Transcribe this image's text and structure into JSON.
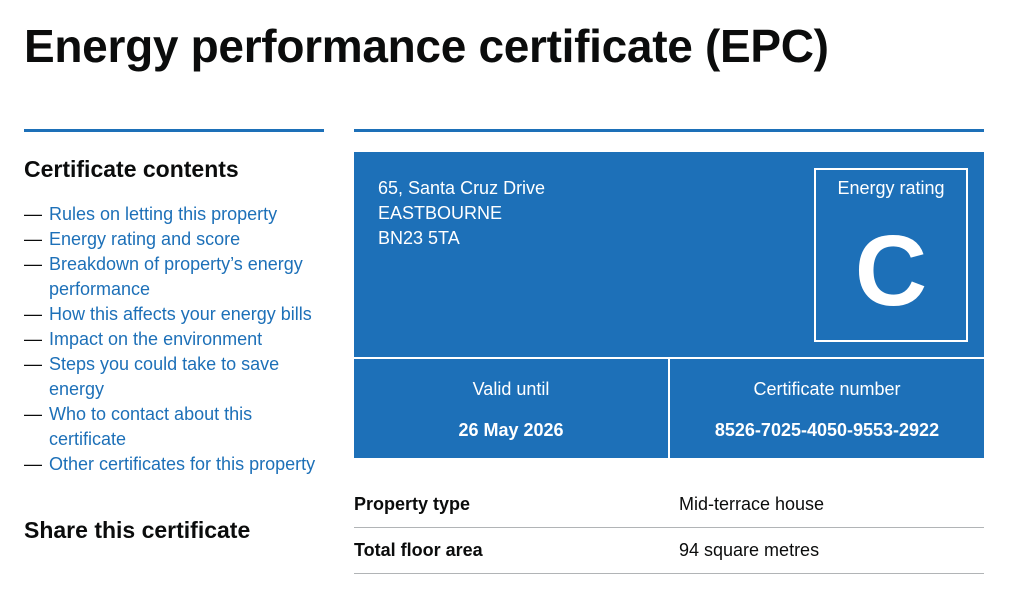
{
  "page": {
    "title": "Energy performance certificate (EPC)"
  },
  "sidebar": {
    "contents_heading": "Certificate contents",
    "items": [
      {
        "label": "Rules on letting this property"
      },
      {
        "label": "Energy rating and score"
      },
      {
        "label": "Breakdown of property’s energy performance"
      },
      {
        "label": "How this affects your energy bills"
      },
      {
        "label": "Impact on the environment"
      },
      {
        "label": "Steps you could take to save energy"
      },
      {
        "label": "Who to contact about this certificate"
      },
      {
        "label": "Other certificates for this property"
      }
    ],
    "dash": "—",
    "share_heading": "Share this certificate"
  },
  "certificate": {
    "address_line1": "65, Santa Cruz Drive",
    "address_line2": "EASTBOURNE",
    "address_line3": "BN23 5TA",
    "rating_label": "Energy rating",
    "rating_letter": "C",
    "valid_until_label": "Valid until",
    "valid_until_value": "26 May 2026",
    "certificate_number_label": "Certificate number",
    "certificate_number_value": "8526-7025-4050-9553-2922"
  },
  "summary": {
    "rows": [
      {
        "key": "Property type",
        "value": "Mid-terrace house"
      },
      {
        "key": "Total floor area",
        "value": "94 square metres"
      }
    ]
  },
  "colors": {
    "accent_blue": "#1d70b8",
    "text": "#0b0c0c",
    "divider": "#b1b4b6"
  }
}
